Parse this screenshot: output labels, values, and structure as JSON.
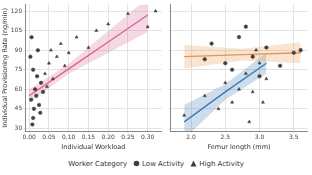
{
  "chart_data": [
    {
      "type": "scatter",
      "x_label": "Individual Workload",
      "y_label": "Individual Provisioning Rate (ng/min)",
      "xlim": [
        -0.01,
        0.335
      ],
      "xticks": [
        {
          "value": 0,
          "label": "0.00"
        },
        {
          "value": 0.05,
          "label": "0.05"
        },
        {
          "value": 0.1,
          "label": "0.10"
        },
        {
          "value": 0.15,
          "label": "0.15"
        },
        {
          "value": 0.2,
          "label": "0.20"
        },
        {
          "value": 0.25,
          "label": "0.25"
        },
        {
          "value": 0.3,
          "label": "0.30"
        }
      ],
      "ylim": [
        28,
        125
      ],
      "yticks": [
        30,
        45,
        60,
        75,
        90,
        105,
        120
      ],
      "grid": true,
      "legend": "bottom",
      "legend_title": "Worker Category",
      "series": [
        {
          "name": "Low Activity",
          "color": "#404040",
          "marker": "circle",
          "x": [
            0.005,
            0.01,
            0.008,
            0.012,
            0.015,
            0.02,
            0.003,
            0.018,
            0.025,
            0.03,
            0.01,
            0.022,
            0.006,
            0.035,
            0.028
          ],
          "values": [
            52,
            38,
            33,
            45,
            60,
            70,
            85,
            55,
            48,
            65,
            75,
            90,
            100,
            58,
            42
          ]
        },
        {
          "name": "High Activity",
          "color": "#404040",
          "marker": "triangle",
          "x": [
            0.04,
            0.05,
            0.06,
            0.07,
            0.08,
            0.09,
            0.1,
            0.12,
            0.15,
            0.17,
            0.2,
            0.25,
            0.32,
            0.3,
            0.045,
            0.055
          ],
          "values": [
            72,
            80,
            68,
            85,
            95,
            78,
            88,
            100,
            92,
            105,
            110,
            118,
            120,
            108,
            62,
            90
          ]
        },
        {
          "type": "line",
          "color": "#d9628f",
          "x": [
            0,
            0.1,
            0.2,
            0.3
          ],
          "values": [
            55,
            75.7,
            96.3,
            117
          ],
          "lower": [
            50,
            72,
            88,
            104
          ],
          "upper": [
            60,
            79.5,
            104.7,
            130
          ]
        }
      ]
    },
    {
      "type": "scatter",
      "x_label": "Femur length (mm)",
      "xlim": [
        1.7,
        3.7
      ],
      "xticks": [
        {
          "value": 2,
          "label": "2.0"
        },
        {
          "value": 2.5,
          "label": "2.5"
        },
        {
          "value": 3,
          "label": "3.0"
        },
        {
          "value": 3.5,
          "label": "3.5"
        }
      ],
      "ylim": [
        28,
        125
      ],
      "yticks": [
        30,
        45,
        60,
        75,
        90,
        105,
        120
      ],
      "grid": true,
      "tick_labels": "x",
      "series": [
        {
          "name": "Low Activity",
          "color": "#404040",
          "marker": "circle",
          "x": [
            2.3,
            2.5,
            2.7,
            2.9,
            3.1,
            3.3,
            3.5,
            2.2,
            2.8,
            3.0,
            3.6,
            2.6
          ],
          "values": [
            95,
            80,
            100,
            85,
            92,
            78,
            88,
            83,
            108,
            70,
            90,
            75
          ]
        },
        {
          "name": "High Activity",
          "color": "#404040",
          "marker": "triangle",
          "x": [
            1.9,
            2.2,
            2.4,
            2.5,
            2.6,
            2.7,
            2.8,
            2.9,
            3.0,
            3.1,
            2.85,
            2.95,
            3.05
          ],
          "values": [
            40,
            55,
            45,
            65,
            50,
            60,
            72,
            58,
            80,
            68,
            35,
            90,
            50
          ]
        },
        {
          "type": "line",
          "color": "#e8944a",
          "x": [
            1.9,
            2.75,
            3.6
          ],
          "values": [
            85,
            86.5,
            88
          ],
          "lower": [
            76,
            82,
            80
          ],
          "upper": [
            94,
            91,
            96
          ]
        },
        {
          "type": "line",
          "color": "#3c78b4",
          "x": [
            1.9,
            2.5,
            3.1
          ],
          "values": [
            35,
            58,
            80
          ],
          "lower": [
            22,
            52,
            72
          ],
          "upper": [
            48,
            64,
            88
          ]
        }
      ]
    }
  ]
}
